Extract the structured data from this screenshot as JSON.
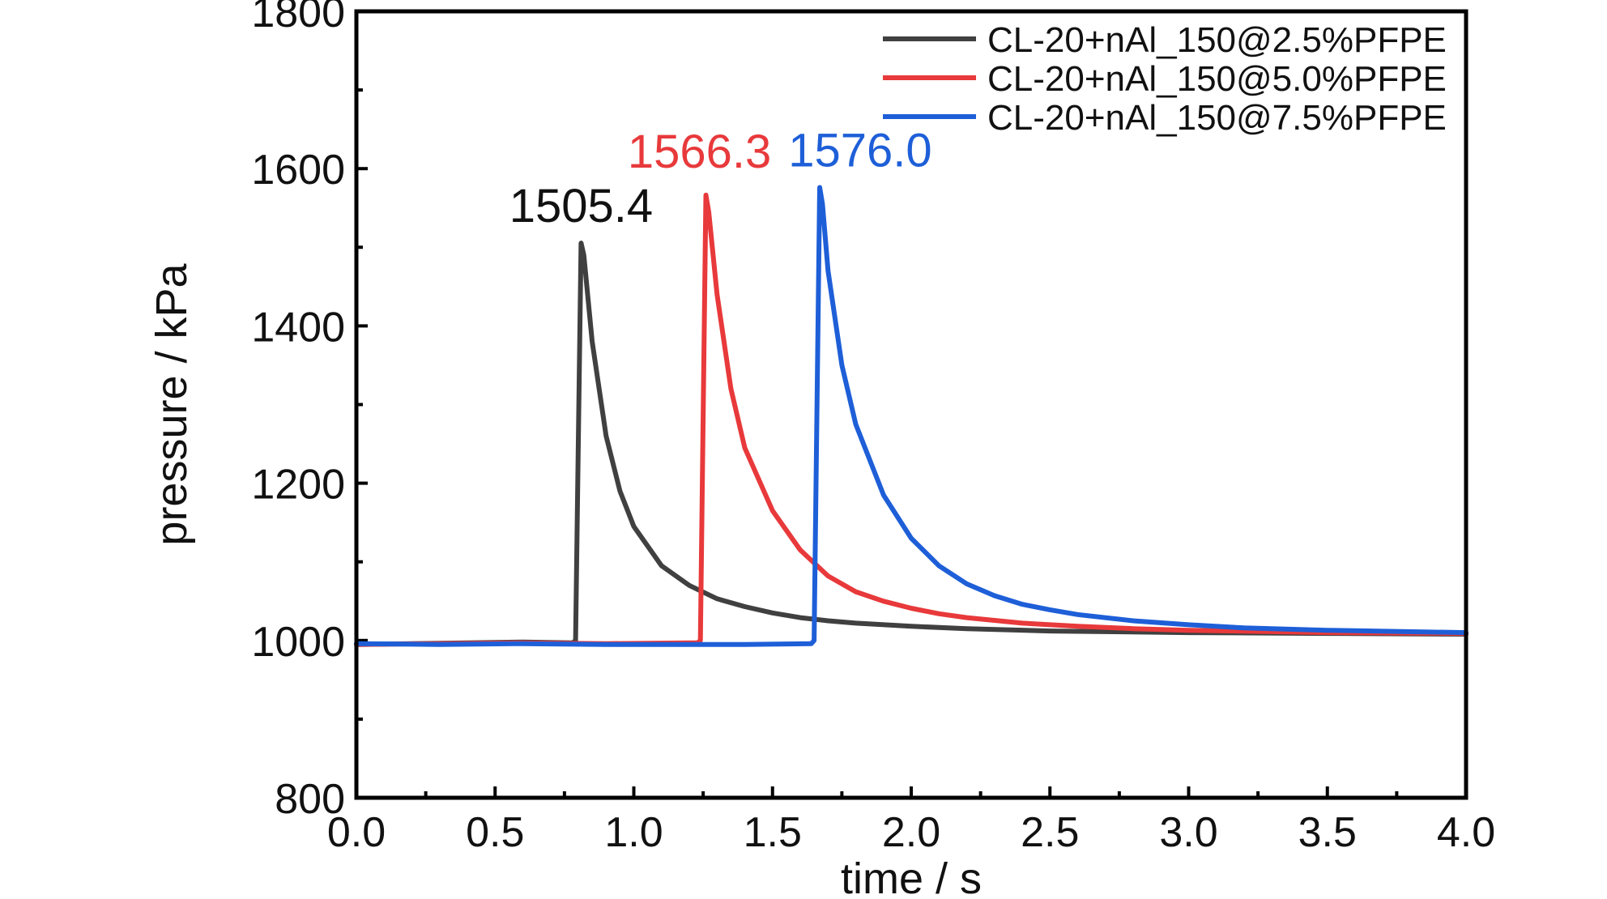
{
  "chart_data": {
    "type": "line",
    "title": "",
    "xlabel": "time / s",
    "ylabel": "pressure / kPa",
    "xlim": [
      0.0,
      4.0
    ],
    "ylim": [
      800,
      1800
    ],
    "xticks": [
      "0.0",
      "0.5",
      "1.0",
      "1.5",
      "2.0",
      "2.5",
      "3.0",
      "3.5",
      "4.0"
    ],
    "yticks": [
      "800",
      "1000",
      "1200",
      "1400",
      "1600",
      "1800"
    ],
    "grid": false,
    "legend_position": "top-right",
    "series": [
      {
        "name": "CL-20+nAl_150@2.5%PFPE",
        "color": "#404040",
        "peak_label": "1505.4",
        "points": [
          [
            0.0,
            995
          ],
          [
            0.2,
            996
          ],
          [
            0.4,
            997
          ],
          [
            0.6,
            998
          ],
          [
            0.78,
            997
          ],
          [
            0.79,
            1000
          ],
          [
            0.81,
            1505.4
          ],
          [
            0.82,
            1490
          ],
          [
            0.85,
            1380
          ],
          [
            0.9,
            1260
          ],
          [
            0.95,
            1190
          ],
          [
            1.0,
            1145
          ],
          [
            1.1,
            1095
          ],
          [
            1.2,
            1070
          ],
          [
            1.3,
            1053
          ],
          [
            1.4,
            1043
          ],
          [
            1.5,
            1035
          ],
          [
            1.6,
            1029
          ],
          [
            1.7,
            1025
          ],
          [
            1.8,
            1022
          ],
          [
            2.0,
            1018
          ],
          [
            2.2,
            1015
          ],
          [
            2.5,
            1012
          ],
          [
            3.0,
            1010
          ],
          [
            3.5,
            1009
          ],
          [
            4.0,
            1008
          ]
        ]
      },
      {
        "name": "CL-20+nAl_150@5.0%PFPE",
        "color": "#e8393b",
        "peak_label": "1566.3",
        "points": [
          [
            0.0,
            995
          ],
          [
            0.3,
            996
          ],
          [
            0.6,
            997
          ],
          [
            0.9,
            996
          ],
          [
            1.2,
            997
          ],
          [
            1.23,
            997
          ],
          [
            1.24,
            1000
          ],
          [
            1.26,
            1566.3
          ],
          [
            1.27,
            1545
          ],
          [
            1.3,
            1440
          ],
          [
            1.35,
            1320
          ],
          [
            1.4,
            1245
          ],
          [
            1.5,
            1165
          ],
          [
            1.6,
            1115
          ],
          [
            1.7,
            1082
          ],
          [
            1.8,
            1062
          ],
          [
            1.9,
            1050
          ],
          [
            2.0,
            1041
          ],
          [
            2.1,
            1034
          ],
          [
            2.2,
            1029
          ],
          [
            2.4,
            1022
          ],
          [
            2.6,
            1018
          ],
          [
            2.8,
            1015
          ],
          [
            3.0,
            1013
          ],
          [
            3.5,
            1010
          ],
          [
            4.0,
            1009
          ]
        ]
      },
      {
        "name": "CL-20+nAl_150@7.5%PFPE",
        "color": "#1e5fd8",
        "peak_label": "1576.0",
        "points": [
          [
            0.0,
            996
          ],
          [
            0.3,
            995
          ],
          [
            0.6,
            996
          ],
          [
            0.9,
            995
          ],
          [
            1.2,
            995
          ],
          [
            1.4,
            995
          ],
          [
            1.64,
            996
          ],
          [
            1.65,
            1000
          ],
          [
            1.67,
            1576.0
          ],
          [
            1.68,
            1555
          ],
          [
            1.7,
            1470
          ],
          [
            1.75,
            1350
          ],
          [
            1.8,
            1275
          ],
          [
            1.9,
            1185
          ],
          [
            2.0,
            1130
          ],
          [
            2.1,
            1095
          ],
          [
            2.2,
            1072
          ],
          [
            2.3,
            1057
          ],
          [
            2.4,
            1046
          ],
          [
            2.5,
            1039
          ],
          [
            2.6,
            1033
          ],
          [
            2.8,
            1025
          ],
          [
            3.0,
            1020
          ],
          [
            3.2,
            1016
          ],
          [
            3.5,
            1013
          ],
          [
            4.0,
            1010
          ]
        ]
      }
    ]
  }
}
